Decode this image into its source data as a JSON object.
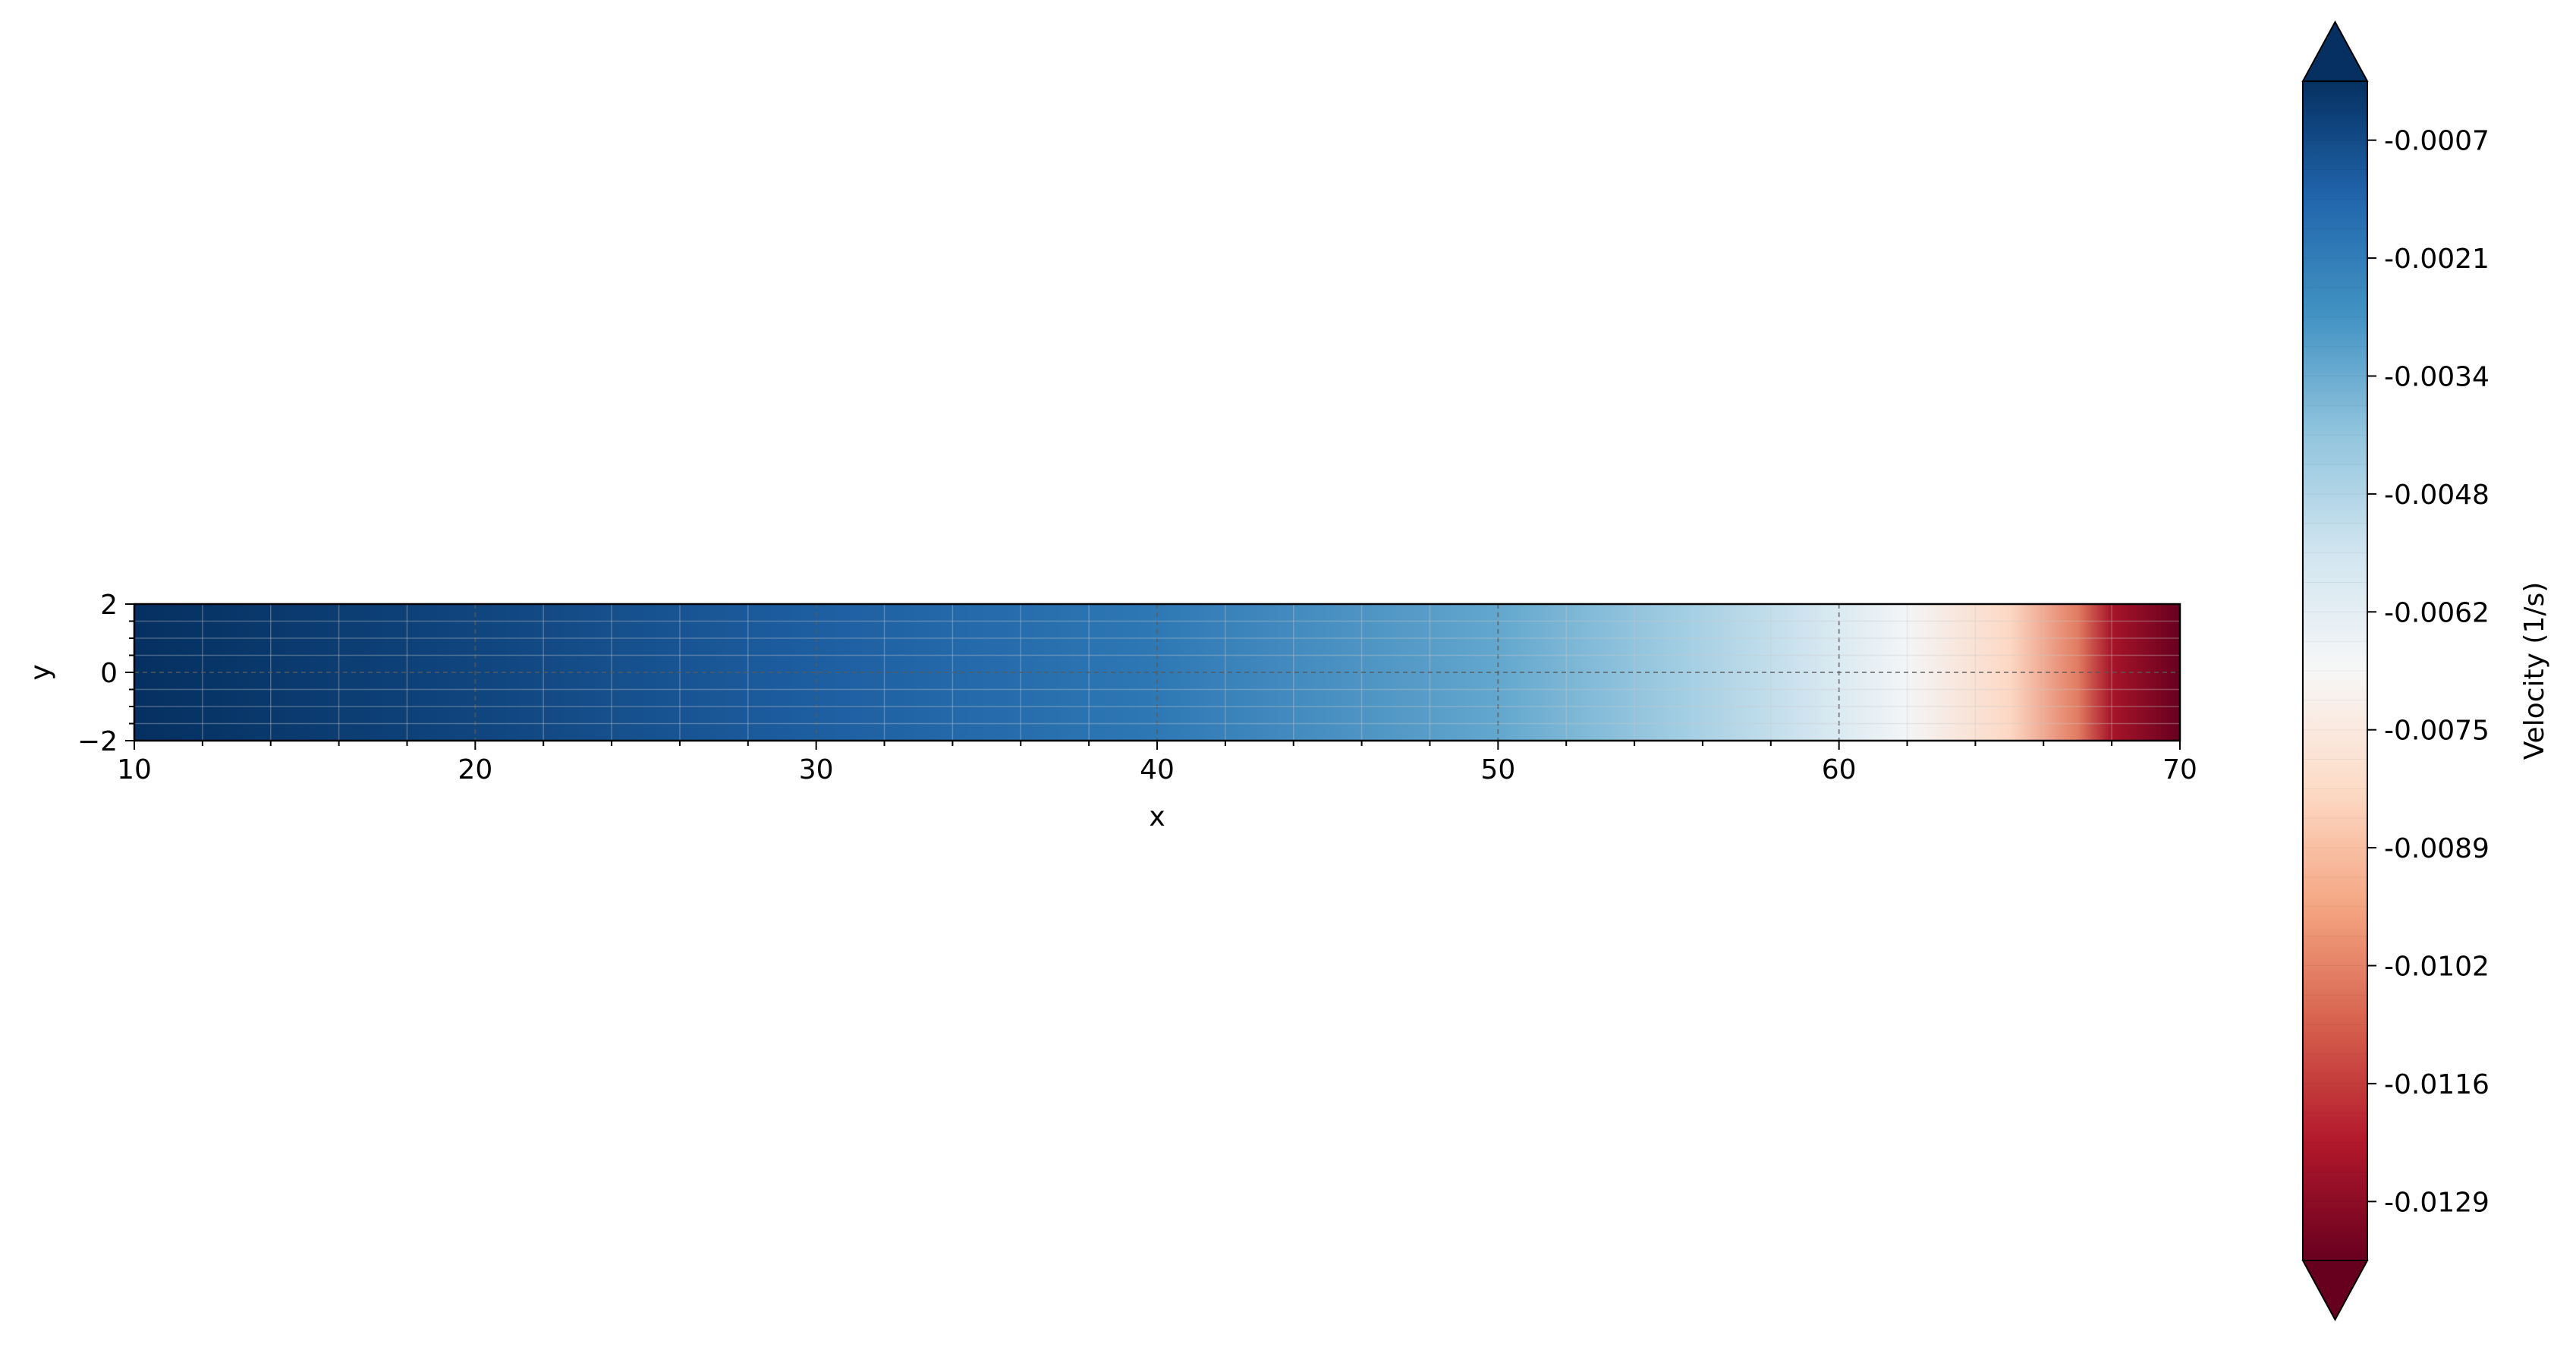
{
  "chart_data": {
    "type": "heatmap",
    "title": "",
    "xlabel": "x",
    "ylabel": "y",
    "xlim": [
      10,
      70
    ],
    "ylim": [
      -2,
      2
    ],
    "x_ticks": [
      10,
      20,
      30,
      40,
      50,
      60,
      70
    ],
    "x_tick_labels": [
      "10",
      "20",
      "30",
      "40",
      "50",
      "60",
      "70"
    ],
    "y_ticks": [
      -2,
      0,
      2
    ],
    "y_tick_labels": [
      "−2",
      "0",
      "2"
    ],
    "grid": true,
    "colormap": "RdBu (reversed, blue = higher)",
    "field": {
      "description_x": [
        10,
        20,
        30,
        40,
        50,
        55,
        60,
        62,
        65,
        67,
        68,
        70
      ],
      "value": [
        -0.0007,
        -0.0012,
        -0.0018,
        -0.0025,
        -0.0038,
        -0.0048,
        -0.0062,
        -0.007,
        -0.0085,
        -0.0105,
        -0.0125,
        -0.014
      ]
    },
    "colorbar": {
      "label": "Velocity (1/s)",
      "extend": "both",
      "vmin": -0.0136,
      "vmax": -0.0007,
      "ticks": [
        -0.0007,
        -0.0021,
        -0.0034,
        -0.0048,
        -0.0062,
        -0.0075,
        -0.0089,
        -0.0102,
        -0.0116,
        -0.0129
      ],
      "tick_labels": [
        "-0.0007",
        "-0.0021",
        "-0.0034",
        "-0.0048",
        "-0.0062",
        "-0.0075",
        "-0.0089",
        "-0.0102",
        "-0.0116",
        "-0.0129"
      ]
    }
  }
}
